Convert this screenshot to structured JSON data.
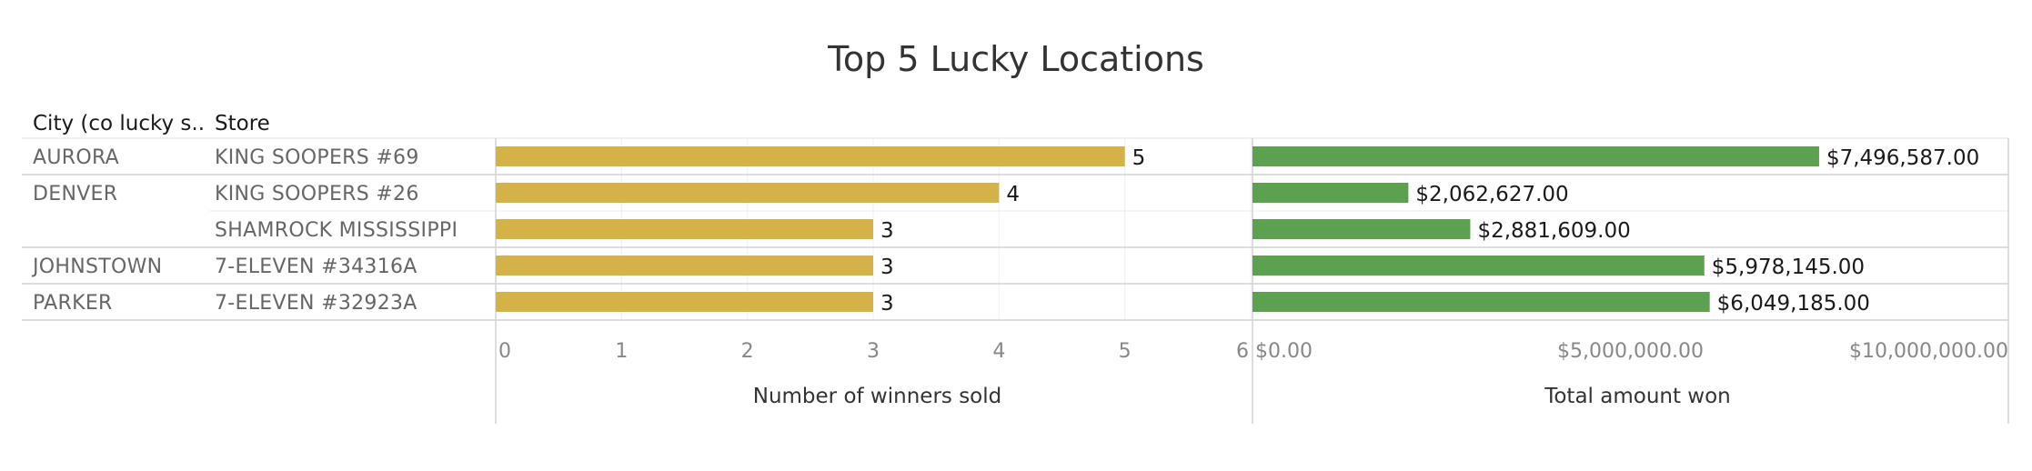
{
  "title": "Top 5 Lucky Locations",
  "columns": {
    "city": "City (co lucky s..",
    "store": "Store"
  },
  "rows": [
    {
      "city": "AURORA",
      "store": "KING SOOPERS #69",
      "winners": 5,
      "amount": 7496587,
      "amount_label": "$7,496,587.00"
    },
    {
      "city": "DENVER",
      "store": "KING SOOPERS #26",
      "winners": 4,
      "amount": 2062627,
      "amount_label": "$2,062,627.00"
    },
    {
      "city": "",
      "store": "SHAMROCK MISSISSIPPI",
      "winners": 3,
      "amount": 2881609,
      "amount_label": "$2,881,609.00"
    },
    {
      "city": "JOHNSTOWN",
      "store": "7-ELEVEN #34316A",
      "winners": 3,
      "amount": 5978145,
      "amount_label": "$5,978,145.00"
    },
    {
      "city": "PARKER",
      "store": "7-ELEVEN #32923A",
      "winners": 3,
      "amount": 6049185,
      "amount_label": "$6,049,185.00"
    }
  ],
  "chart_data": [
    {
      "type": "bar",
      "orientation": "horizontal",
      "xlabel": "Number of winners sold",
      "xlim": [
        0,
        6
      ],
      "ticks": [
        0,
        1,
        2,
        3,
        4,
        5,
        6
      ],
      "tick_labels": [
        "0",
        "1",
        "2",
        "3",
        "4",
        "5",
        "6"
      ],
      "grid": true,
      "color": "#D4B247",
      "categories": [
        "AURORA / KING SOOPERS #69",
        "DENVER / KING SOOPERS #26",
        "DENVER / SHAMROCK MISSISSIPPI",
        "JOHNSTOWN / 7-ELEVEN #34316A",
        "PARKER / 7-ELEVEN #32923A"
      ],
      "values": [
        5,
        4,
        3,
        3,
        3
      ]
    },
    {
      "type": "bar",
      "orientation": "horizontal",
      "xlabel": "Total amount won",
      "xlim": [
        0,
        10000000
      ],
      "ticks": [
        0,
        5000000,
        10000000
      ],
      "tick_labels": [
        "$0.00",
        "$5,000,000.00",
        "$10,000,000.00"
      ],
      "grid": false,
      "color": "#5BA150",
      "categories": [
        "AURORA / KING SOOPERS #69",
        "DENVER / KING SOOPERS #26",
        "DENVER / SHAMROCK MISSISSIPPI",
        "JOHNSTOWN / 7-ELEVEN #34316A",
        "PARKER / 7-ELEVEN #32923A"
      ],
      "values": [
        7496587,
        2062627,
        2881609,
        5978145,
        6049185
      ]
    }
  ]
}
